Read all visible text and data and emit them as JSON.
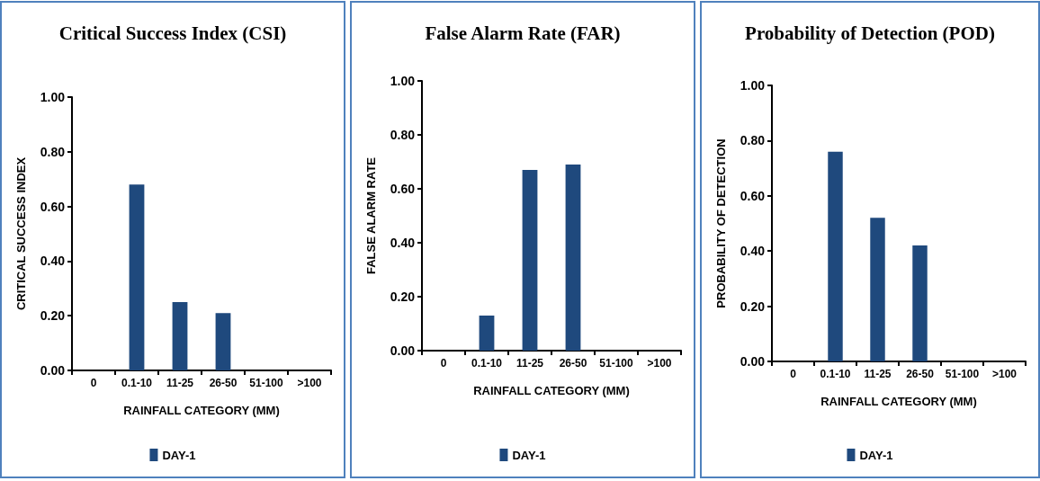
{
  "chart_data": [
    {
      "type": "bar",
      "title": "Critical Success Index (CSI)",
      "xlabel": "RAINFALL CATEGORY (MM)",
      "ylabel": "CRITICAL SUCCESS INDEX",
      "categories": [
        "0",
        "0.1-10",
        "11-25",
        "26-50",
        "51-100",
        ">100"
      ],
      "series": [
        {
          "name": "DAY-1",
          "color": "#1f497d",
          "values": [
            0,
            0.68,
            0.25,
            0.21,
            0,
            0
          ]
        }
      ],
      "ylim": [
        0,
        1
      ],
      "yticks": [
        {
          "value": 0,
          "label": "0.00"
        },
        {
          "value": 0.2,
          "label": "0.20"
        },
        {
          "value": 0.4,
          "label": "0.40"
        },
        {
          "value": 0.6,
          "label": "0.60"
        },
        {
          "value": 0.8,
          "label": "0.80"
        },
        {
          "value": 1,
          "label": "1.00"
        }
      ],
      "grid": false,
      "legend": "bottom"
    },
    {
      "type": "bar",
      "title": "False Alarm Rate (FAR)",
      "xlabel": "RAINFALL CATEGORY (MM)",
      "ylabel": "FALSE ALARM RATE",
      "categories": [
        "0",
        "0.1-10",
        "11-25",
        "26-50",
        "51-100",
        ">100"
      ],
      "series": [
        {
          "name": "DAY-1",
          "color": "#1f497d",
          "values": [
            0,
            0.13,
            0.67,
            0.69,
            0,
            0
          ]
        }
      ],
      "ylim": [
        0,
        1
      ],
      "yticks": [
        {
          "value": 0,
          "label": "0.00"
        },
        {
          "value": 0.2,
          "label": "0.20"
        },
        {
          "value": 0.4,
          "label": "0.40"
        },
        {
          "value": 0.6,
          "label": "0.60"
        },
        {
          "value": 0.8,
          "label": "0.80"
        },
        {
          "value": 1,
          "label": "1.00"
        }
      ],
      "grid": false,
      "legend": "bottom"
    },
    {
      "type": "bar",
      "title": "Probability of Detection (POD)",
      "xlabel": "RAINFALL CATEGORY (MM)",
      "ylabel": "PROBABILITY OF DETECTION",
      "categories": [
        "0",
        "0.1-10",
        "11-25",
        "26-50",
        "51-100",
        ">100"
      ],
      "series": [
        {
          "name": "DAY-1",
          "color": "#1f497d",
          "values": [
            0,
            0.76,
            0.52,
            0.42,
            0,
            0
          ]
        }
      ],
      "ylim": [
        0,
        1
      ],
      "yticks": [
        {
          "value": 0,
          "label": "0.00"
        },
        {
          "value": 0.2,
          "label": "0.20"
        },
        {
          "value": 0.4,
          "label": "0.40"
        },
        {
          "value": 0.6,
          "label": "0.60"
        },
        {
          "value": 0.8,
          "label": "0.80"
        },
        {
          "value": 1,
          "label": "1.00"
        }
      ],
      "grid": false,
      "legend": "bottom"
    }
  ]
}
